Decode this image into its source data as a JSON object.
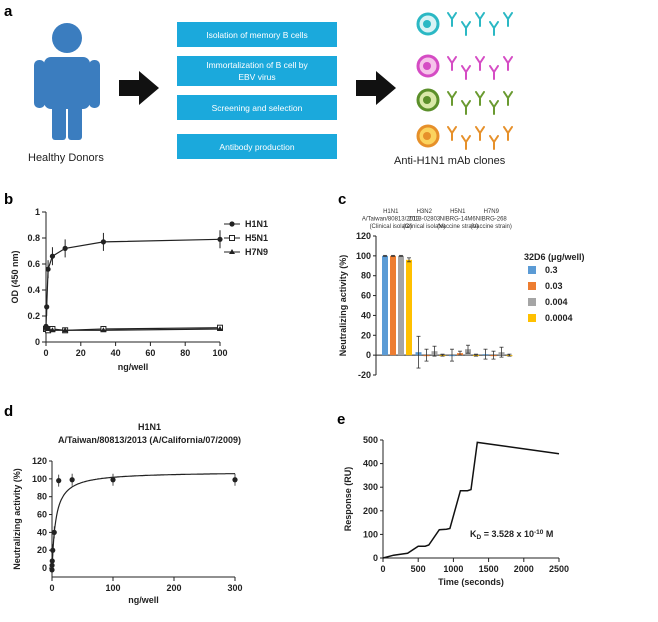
{
  "panel_a": {
    "label": "a",
    "donors_label": "Healthy Donors",
    "steps": [
      "Isolation of memory B cells",
      "Immortalization of B cell by",
      "EBV virus",
      "Screening and selection",
      "Antibody production"
    ],
    "clones_label": "Anti-H1N1 mAb clones",
    "colors": {
      "step_box": "#1ba9dc",
      "person": "#3b7dbf",
      "arrow": "#111111"
    }
  },
  "chart_data": [
    {
      "panel": "b",
      "type": "line",
      "title": "",
      "xlabel": "ng/well",
      "ylabel": "OD (450 nm)",
      "xlim": [
        0,
        100
      ],
      "ylim": [
        0,
        1.0
      ],
      "xticks": [
        "0",
        "20",
        "40",
        "60",
        "80",
        "100"
      ],
      "yticks": [
        "0",
        "0.2",
        "0.4",
        "0.6",
        "0.8",
        "1"
      ],
      "series": [
        {
          "name": "H1N1",
          "x": [
            0,
            0.4,
            1.2,
            3.7,
            11,
            33,
            100
          ],
          "y": [
            0.12,
            0.27,
            0.56,
            0.66,
            0.72,
            0.77,
            0.79
          ]
        },
        {
          "name": "H5N1",
          "x": [
            0,
            0.4,
            1.2,
            3.7,
            11,
            33,
            100
          ],
          "y": [
            0.1,
            0.1,
            0.09,
            0.1,
            0.09,
            0.1,
            0.11
          ]
        },
        {
          "name": "H7N9",
          "x": [
            0,
            0.4,
            1.2,
            3.7,
            11,
            33,
            100
          ],
          "y": [
            0.12,
            0.11,
            0.1,
            0.09,
            0.09,
            0.09,
            0.1
          ]
        }
      ]
    },
    {
      "panel": "c",
      "type": "bar",
      "xlabel": "",
      "ylabel": "Neutralizing activity (%)",
      "ylim": [
        -20,
        120
      ],
      "yticks": [
        "-20",
        "0",
        "20",
        "40",
        "60",
        "80",
        "100",
        "120"
      ],
      "categories": [
        [
          "H1N1",
          "A/Taiwan/80813/2013",
          "(Clinical isolate)"
        ],
        [
          "H3N2",
          "2013-02803",
          "(Clinical isolate)"
        ],
        [
          "H5N1",
          "NIBRG-14M6",
          "(Vaccine strain)"
        ],
        [
          "H7N9",
          "NIBRG-268",
          "(Vaccine strain)"
        ]
      ],
      "legend_title": "32D6 (μg/well)",
      "series": [
        {
          "name": "0.3",
          "color": "#5b9bd5",
          "values": [
            100,
            3,
            0,
            1
          ]
        },
        {
          "name": "0.03",
          "color": "#ed7d31",
          "values": [
            100,
            0,
            2,
            0
          ]
        },
        {
          "name": "0.004",
          "color": "#a5a5a5",
          "values": [
            100,
            4,
            6,
            3
          ]
        },
        {
          "name": "0.0004",
          "color": "#ffc000",
          "values": [
            96,
            0,
            0,
            0
          ]
        }
      ]
    },
    {
      "panel": "d",
      "type": "scatter",
      "title_line1": "H1N1",
      "title_line2": "A/Taiwan/80813/2013 (A/California/07/2009)",
      "xlabel": "ng/well",
      "ylabel": "Neutralizing activity (%)",
      "xlim": [
        0,
        300
      ],
      "ylim": [
        -10,
        120
      ],
      "xticks": [
        "0",
        "100",
        "200",
        "300"
      ],
      "yticks": [
        "0",
        "20",
        "40",
        "60",
        "80",
        "100",
        "120"
      ],
      "x": [
        0.03,
        0.1,
        0.4,
        1.2,
        3.7,
        11,
        33,
        100,
        300
      ],
      "y": [
        -2,
        3,
        8,
        20,
        40,
        98,
        99,
        99,
        99
      ]
    },
    {
      "panel": "e",
      "type": "line",
      "xlabel": "Time (seconds)",
      "ylabel": "Response (RU)",
      "xlim": [
        0,
        2500
      ],
      "ylim": [
        0,
        500
      ],
      "xticks": [
        "0",
        "500",
        "1000",
        "1500",
        "2000",
        "2500"
      ],
      "yticks": [
        "0",
        "100",
        "200",
        "300",
        "400",
        "500"
      ],
      "annotation": "K",
      "annotation_sub": "D",
      "annotation_value": " = 3.528 x 10",
      "annotation_exp": "-10",
      "annotation_unit": " M",
      "x": [
        0,
        150,
        300,
        350,
        500,
        600,
        650,
        800,
        900,
        950,
        1100,
        1200,
        1250,
        1340,
        2500
      ],
      "y": [
        0,
        12,
        18,
        20,
        50,
        50,
        55,
        120,
        122,
        125,
        285,
        285,
        290,
        490,
        442
      ]
    }
  ]
}
